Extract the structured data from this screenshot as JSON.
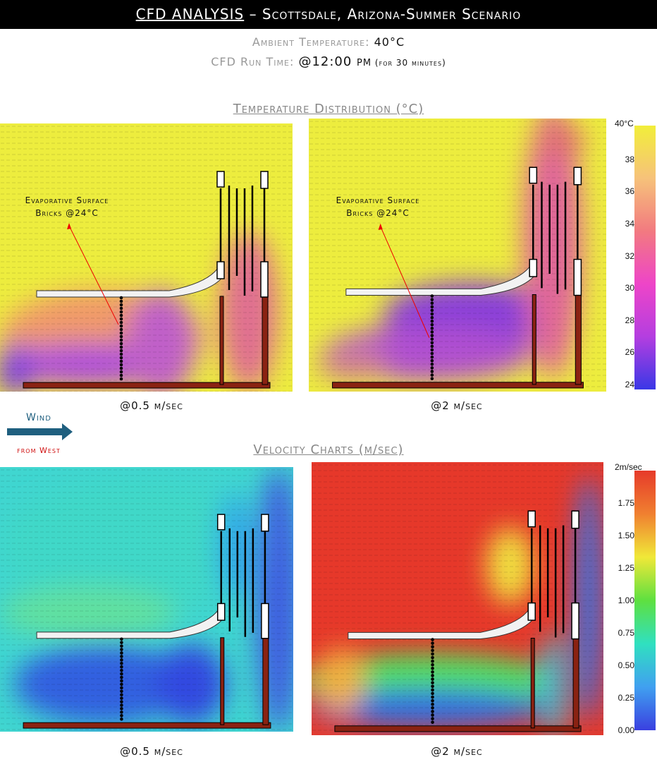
{
  "header": {
    "title_main": "CFD ANALYSIS",
    "title_rest": " – Scottsdale, Arizona-Summer Scenario"
  },
  "info": {
    "ambient_label": "Ambient Temperature: ",
    "ambient_value": "40°C",
    "runtime_label": "CFD Run Time: ",
    "runtime_value": "@12:00 pm",
    "runtime_note": " (for 30 minutes)"
  },
  "temperature": {
    "title": "Temperature Distribution (°C)",
    "annotation_line1": "Evaporative Surface",
    "annotation_line2": "Bricks @24°C",
    "captions": [
      "@0.5 m/sec",
      "@2 m/sec"
    ],
    "colorbar": {
      "ticks": [
        "40°C",
        "38",
        "36",
        "34",
        "32",
        "30",
        "28",
        "26",
        "24"
      ],
      "colors": [
        "#f2ee3a",
        "#f6c27a",
        "#f27a80",
        "#ee45c8",
        "#b43ee0",
        "#3a38e6"
      ]
    }
  },
  "wind": {
    "label": "Wind",
    "from": "from West",
    "color": "#1f5f7f"
  },
  "velocity": {
    "title": "Velocity Charts (m/sec)",
    "captions": [
      "@0.5 m/sec",
      "@2 m/sec"
    ],
    "colorbar": {
      "ticks": [
        "2m/sec",
        "1.75",
        "1.50",
        "1.25",
        "1.00",
        "0.75",
        "0.50",
        "0.25",
        "0.00"
      ],
      "colors": [
        "#e63a2a",
        "#f08030",
        "#f0e838",
        "#5ee040",
        "#30e0c0",
        "#40a0f0",
        "#3a40e0"
      ]
    }
  }
}
